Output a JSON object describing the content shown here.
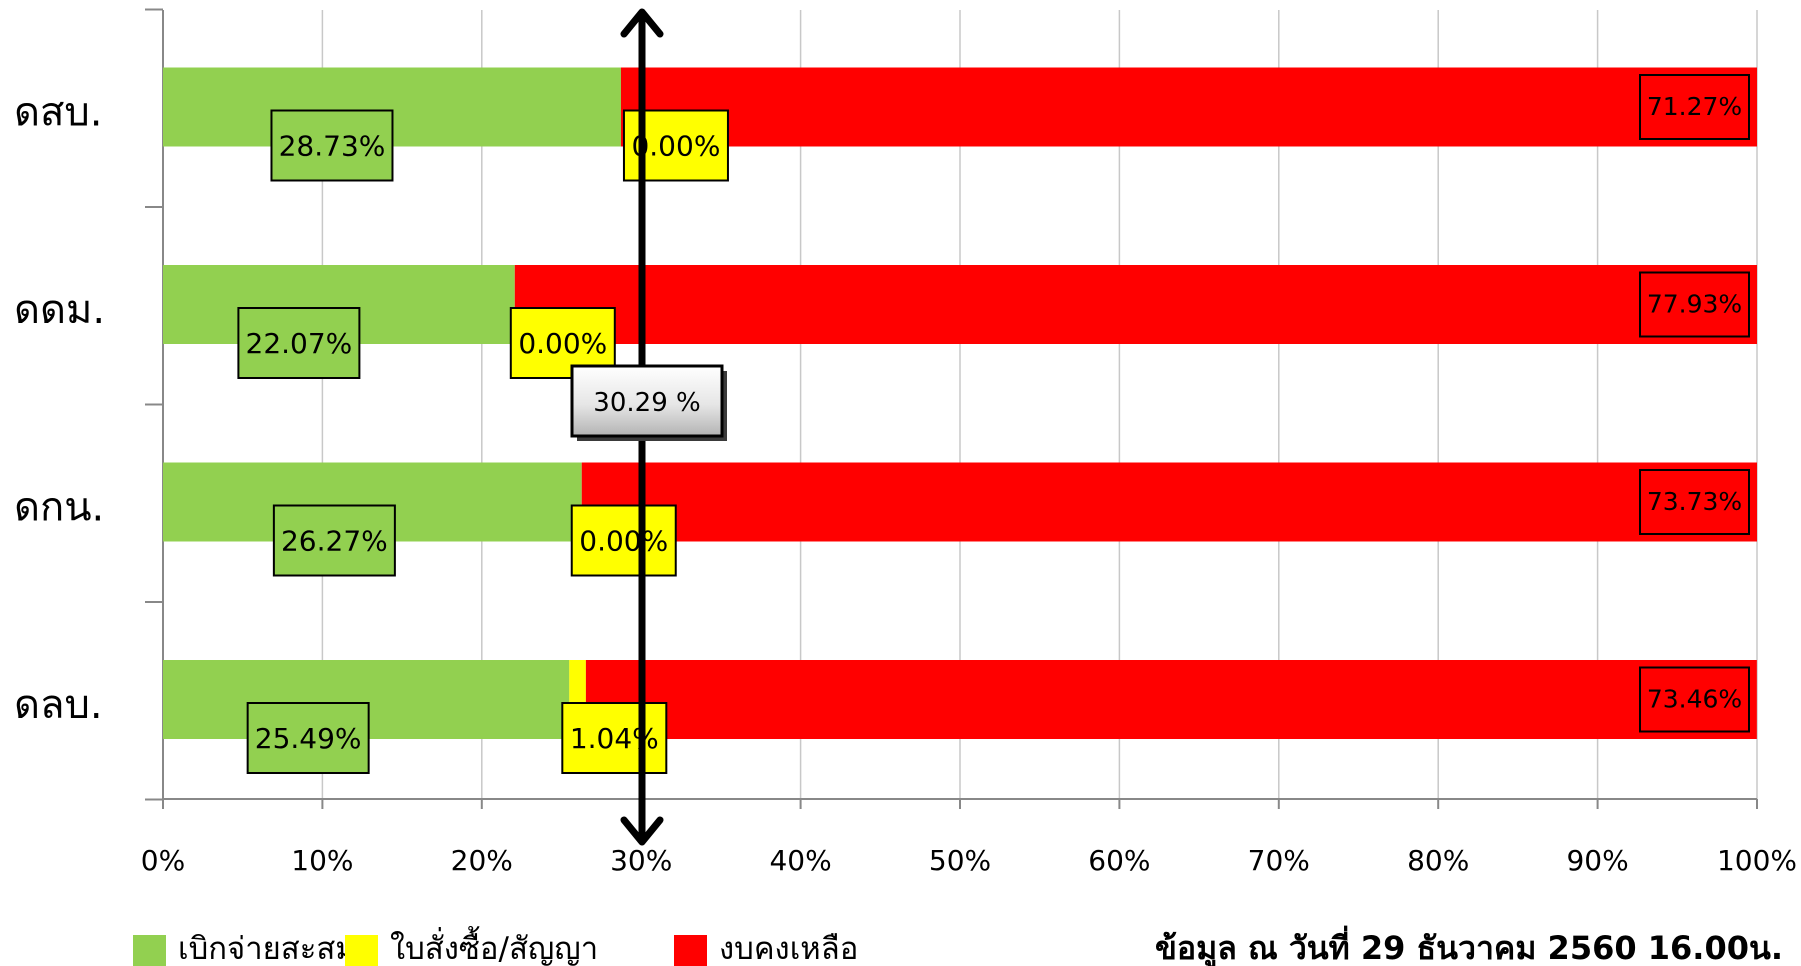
{
  "chart_data": {
    "type": "bar",
    "orientation": "horizontal",
    "stacked": "percent",
    "categories": [
      "ดสบ.",
      "ดดม.",
      "ดกน.",
      "ดลบ."
    ],
    "series": [
      {
        "name": "เบิกจ่ายสะสม",
        "color": "#92D050",
        "values": [
          28.73,
          22.07,
          26.27,
          25.49
        ],
        "labels": [
          "28.73%",
          "22.07%",
          "26.27%",
          "25.49%"
        ]
      },
      {
        "name": "ใบสั่งซื้อ/สัญญา",
        "color": "#FFFF00",
        "values": [
          0.0,
          0.0,
          0.0,
          1.04
        ],
        "labels": [
          "0.00%",
          "0.00%",
          "0.00%",
          "1.04%"
        ]
      },
      {
        "name": "งบคงเหลือ",
        "color": "#FF0000",
        "values": [
          71.27,
          77.93,
          73.73,
          73.46
        ],
        "labels": [
          "71.27%",
          "77.93%",
          "73.73%",
          "73.46%"
        ]
      }
    ],
    "xlim": [
      0,
      100
    ],
    "x_ticks": [
      "0%",
      "10%",
      "20%",
      "30%",
      "40%",
      "50%",
      "60%",
      "70%",
      "80%",
      "90%",
      "100%"
    ],
    "grid": "vertical",
    "legend_position": "bottom-left",
    "reference_line": {
      "value": 30.29,
      "label": "30.29 %"
    }
  },
  "footer_note": "ข้อมูล ณ วันที่ 29 ธันวาคม 2560 16.00น."
}
